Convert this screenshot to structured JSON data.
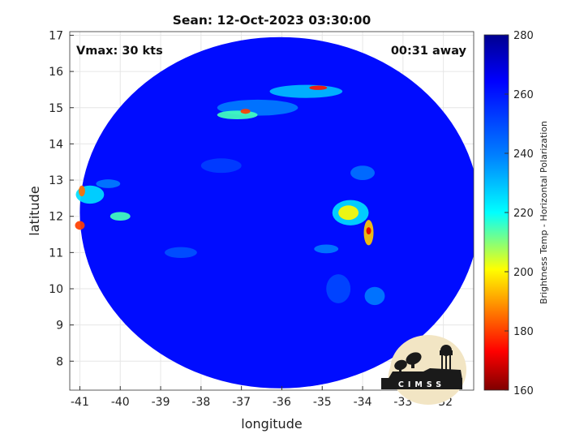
{
  "chart_data": {
    "type": "heatmap",
    "title": "Sean: 12-Oct-2023 03:30:00",
    "xlabel": "longitude",
    "ylabel": "latitude",
    "x_ticks": [
      -41,
      -40,
      -39,
      -38,
      -37,
      -36,
      -35,
      -34,
      -33,
      -32
    ],
    "y_ticks": [
      8,
      9,
      10,
      11,
      12,
      13,
      14,
      15,
      16,
      17
    ],
    "xlim": [
      -41.25,
      -31.25
    ],
    "ylim": [
      7.2,
      17.1
    ],
    "grid": true,
    "annotations": {
      "vmax": "Vmax: 30 kts",
      "time_offset": "00:31 away"
    },
    "colorbar": {
      "label": "Brightness Temp - Horizontal Polarization",
      "ticks": [
        160,
        180,
        200,
        220,
        240,
        260,
        280
      ],
      "range": [
        160,
        280
      ],
      "colormap": "jet",
      "stops": [
        "#7f0000",
        "#ff0000",
        "#ff8000",
        "#ffff00",
        "#80ff80",
        "#00ffff",
        "#0080ff",
        "#0000ff",
        "#00008f"
      ]
    },
    "background_temp": 262,
    "swath": {
      "center_lon": -36.05,
      "center_lat": 12.1,
      "radius_lon": 4.95,
      "radius_lat": 4.85
    },
    "features": [
      {
        "lon": -36.6,
        "lat": 15.0,
        "rlon": 1.0,
        "rlat": 0.22,
        "temp": 240
      },
      {
        "lon": -35.4,
        "lat": 15.45,
        "rlon": 0.9,
        "rlat": 0.18,
        "temp": 230
      },
      {
        "lon": -35.1,
        "lat": 15.55,
        "rlon": 0.22,
        "rlat": 0.06,
        "temp": 175
      },
      {
        "lon": -37.1,
        "lat": 14.8,
        "rlon": 0.5,
        "rlat": 0.12,
        "temp": 215
      },
      {
        "lon": -36.9,
        "lat": 14.9,
        "rlon": 0.12,
        "rlat": 0.07,
        "temp": 180
      },
      {
        "lon": -34.3,
        "lat": 12.1,
        "rlon": 0.45,
        "rlat": 0.35,
        "temp": 225
      },
      {
        "lon": -34.35,
        "lat": 12.1,
        "rlon": 0.25,
        "rlat": 0.2,
        "temp": 200
      },
      {
        "lon": -33.85,
        "lat": 11.55,
        "rlon": 0.12,
        "rlat": 0.35,
        "temp": 195
      },
      {
        "lon": -33.85,
        "lat": 11.6,
        "rlon": 0.06,
        "rlat": 0.1,
        "temp": 170
      },
      {
        "lon": -34.9,
        "lat": 11.1,
        "rlon": 0.3,
        "rlat": 0.12,
        "temp": 240
      },
      {
        "lon": -34.0,
        "lat": 13.2,
        "rlon": 0.3,
        "rlat": 0.2,
        "temp": 242
      },
      {
        "lon": -40.75,
        "lat": 12.6,
        "rlon": 0.35,
        "rlat": 0.25,
        "temp": 225
      },
      {
        "lon": -40.95,
        "lat": 12.7,
        "rlon": 0.08,
        "rlat": 0.15,
        "temp": 185
      },
      {
        "lon": -41.0,
        "lat": 11.75,
        "rlon": 0.12,
        "rlat": 0.12,
        "temp": 180
      },
      {
        "lon": -40.0,
        "lat": 12.0,
        "rlon": 0.25,
        "rlat": 0.12,
        "temp": 215
      },
      {
        "lon": -40.3,
        "lat": 12.9,
        "rlon": 0.3,
        "rlat": 0.12,
        "temp": 240
      },
      {
        "lon": -33.7,
        "lat": 9.8,
        "rlon": 0.25,
        "rlat": 0.25,
        "temp": 240
      },
      {
        "lon": -38.5,
        "lat": 11.0,
        "rlon": 0.4,
        "rlat": 0.15,
        "temp": 248
      },
      {
        "lon": -37.5,
        "lat": 13.4,
        "rlon": 0.5,
        "rlat": 0.2,
        "temp": 252
      },
      {
        "lon": -34.6,
        "lat": 10.0,
        "rlon": 0.3,
        "rlat": 0.4,
        "temp": 250
      }
    ]
  },
  "logo": {
    "text": "CIMSS"
  }
}
